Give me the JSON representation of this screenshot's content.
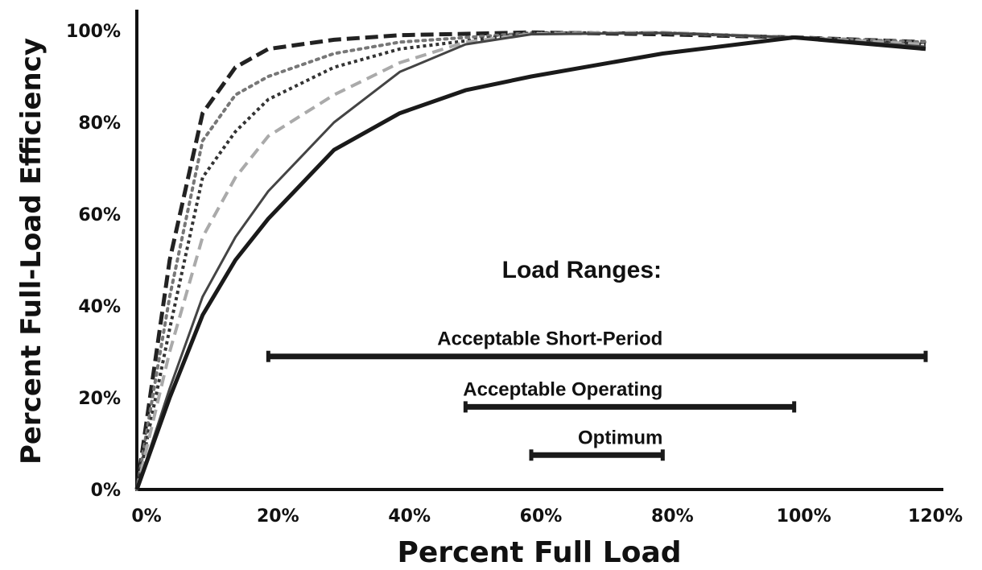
{
  "chart_data": {
    "type": "line",
    "xlabel": "Percent Full Load",
    "ylabel": "Percent Full-Load Efficiency",
    "xlim": [
      0,
      120
    ],
    "ylim": [
      0,
      100
    ],
    "xticks": [
      "0%",
      "20%",
      "40%",
      "60%",
      "80%",
      "100%",
      "120%"
    ],
    "yticks": [
      "0%",
      "20%",
      "40%",
      "60%",
      "80%",
      "100%"
    ],
    "grid": false,
    "series": [
      {
        "style": "dashed-heavy",
        "x": [
          0,
          5,
          10,
          15,
          20,
          30,
          40,
          60,
          80,
          100,
          120
        ],
        "y": [
          0,
          50,
          82,
          92,
          96,
          98,
          99,
          99.6,
          99.2,
          98.5,
          97.5
        ]
      },
      {
        "style": "dotted",
        "x": [
          0,
          5,
          10,
          15,
          20,
          30,
          40,
          60,
          80,
          100,
          120
        ],
        "y": [
          0,
          42,
          76,
          86,
          90,
          95,
          97.5,
          99.5,
          99.5,
          98.5,
          97.5
        ]
      },
      {
        "style": "dash-dot",
        "x": [
          0,
          5,
          10,
          15,
          20,
          30,
          40,
          60,
          80,
          100,
          120
        ],
        "y": [
          0,
          35,
          68,
          78,
          85,
          92,
          96,
          99.5,
          99.5,
          98.5,
          97
        ]
      },
      {
        "style": "light-dashed",
        "x": [
          0,
          5,
          10,
          15,
          20,
          30,
          40,
          50,
          60,
          80,
          100,
          120
        ],
        "y": [
          0,
          30,
          55,
          68,
          77,
          86,
          93,
          97.5,
          99.3,
          99.6,
          98.5,
          97
        ]
      },
      {
        "style": "thin-solid",
        "x": [
          0,
          5,
          10,
          15,
          20,
          30,
          40,
          50,
          60,
          80,
          100,
          120
        ],
        "y": [
          0,
          22,
          42,
          55,
          65,
          80,
          91,
          97,
          99.2,
          99.5,
          98.5,
          96.5
        ]
      },
      {
        "style": "thick-solid",
        "x": [
          0,
          5,
          10,
          15,
          20,
          30,
          40,
          50,
          60,
          80,
          100,
          120
        ],
        "y": [
          0,
          20,
          38,
          50,
          59,
          74,
          82,
          87,
          90,
          95,
          98.5,
          96
        ]
      }
    ],
    "annotation_title": "Load Ranges:",
    "ranges": [
      {
        "label": "Acceptable Short-Period",
        "start": 20,
        "end": 120,
        "y": 29
      },
      {
        "label": "Acceptable Operating",
        "start": 50,
        "end": 100,
        "y": 18
      },
      {
        "label": "Optimum",
        "start": 60,
        "end": 80,
        "y": 7.5
      }
    ]
  }
}
